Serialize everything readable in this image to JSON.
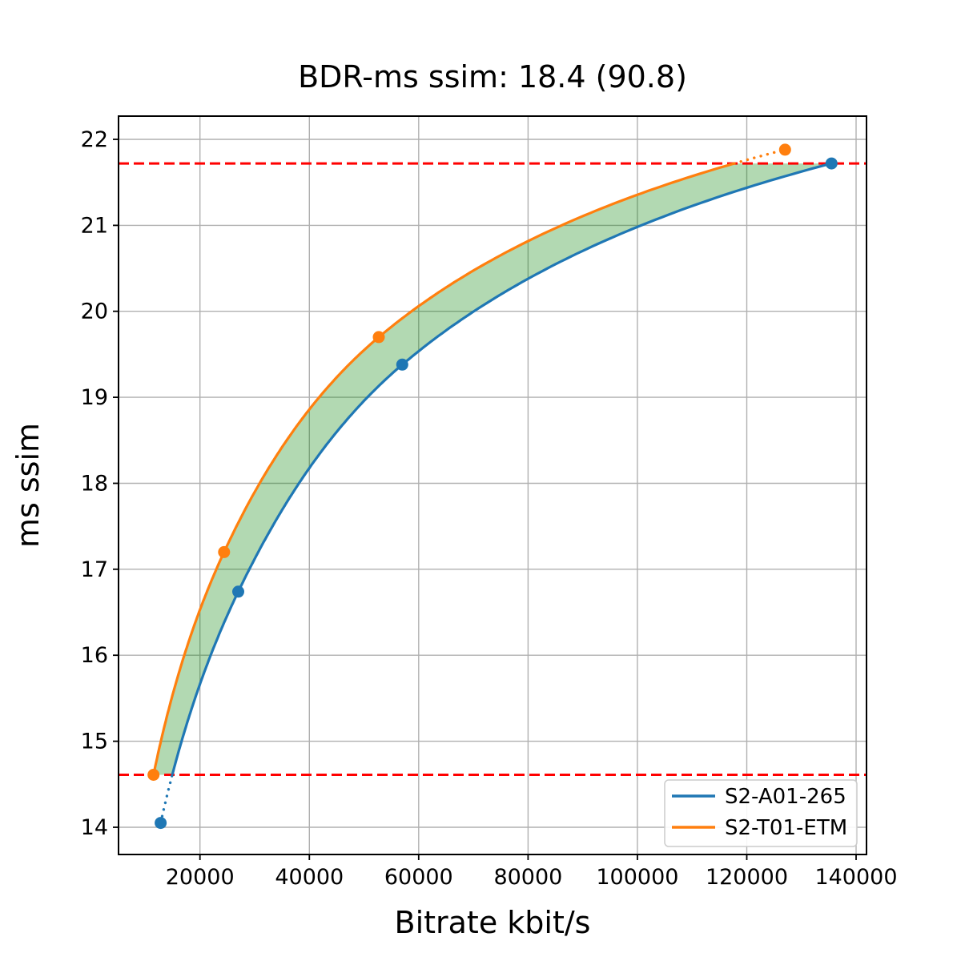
{
  "title": "BDR-ms ssim: 18.4 (90.8)",
  "chart_data": {
    "type": "line",
    "title": "BDR-ms ssim: 18.4 (90.8)",
    "xlabel": "Bitrate kbit/s",
    "ylabel": "ms ssim",
    "xlim": [
      5100,
      141900
    ],
    "ylim": [
      13.683,
      22.27
    ],
    "x_ticks": [
      20000,
      40000,
      60000,
      80000,
      100000,
      120000,
      140000
    ],
    "y_ticks": [
      14,
      15,
      16,
      17,
      18,
      19,
      20,
      21,
      22
    ],
    "grid": true,
    "grid_color": "#b0b0b0",
    "legend_position": "lower right",
    "series": [
      {
        "name": "S2-A01-265",
        "color": "#1f77b4",
        "x": [
          12800,
          27000,
          57000,
          135500
        ],
        "y": [
          14.05,
          16.74,
          19.38,
          21.72
        ]
      },
      {
        "name": "S2-T01-ETM",
        "color": "#ff7f0e",
        "x": [
          11500,
          24400,
          52700,
          127000
        ],
        "y": [
          14.61,
          17.2,
          19.7,
          21.88
        ]
      }
    ],
    "integration_bounds": {
      "lower": 14.61,
      "upper": 21.72,
      "line_color": "#ff0000",
      "line_style": "dashed"
    },
    "fill_between": {
      "color": "#008000",
      "opacity": 0.3
    }
  }
}
